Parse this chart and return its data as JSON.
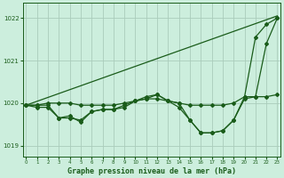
{
  "title": "Graphe pression niveau de la mer (hPa)",
  "background_color": "#cceedd",
  "grid_color": "#aaccbb",
  "line_color": "#1a5c1a",
  "series": [
    {
      "x": [
        0,
        23
      ],
      "y": [
        1019.95,
        1022.05
      ],
      "marker": null,
      "linewidth": 0.9,
      "markersize": 0
    },
    {
      "x": [
        0,
        1,
        2,
        3,
        4,
        5,
        6,
        7,
        8,
        9,
        10,
        11,
        12,
        13,
        14,
        15,
        16,
        17,
        18,
        19,
        20,
        21,
        22,
        23
      ],
      "y": [
        1019.95,
        1019.95,
        1020.0,
        1020.0,
        1020.0,
        1019.95,
        1019.95,
        1019.95,
        1019.95,
        1020.0,
        1020.05,
        1020.1,
        1020.1,
        1020.05,
        1020.0,
        1019.95,
        1019.95,
        1019.95,
        1019.95,
        1020.0,
        1020.15,
        1020.15,
        1020.15,
        1020.2
      ],
      "marker": "D",
      "linewidth": 0.9,
      "markersize": 2
    },
    {
      "x": [
        0,
        1,
        2,
        3,
        4,
        5,
        6,
        7,
        8,
        9,
        10,
        11,
        12,
        13,
        14,
        15,
        16,
        17,
        18,
        19,
        20,
        21,
        22,
        23
      ],
      "y": [
        1019.95,
        1019.9,
        1019.9,
        1019.65,
        1019.65,
        1019.6,
        1019.8,
        1019.85,
        1019.85,
        1019.95,
        1020.05,
        1020.15,
        1020.2,
        1020.05,
        1020.0,
        1019.6,
        1019.3,
        1019.3,
        1019.35,
        1019.6,
        1020.15,
        1021.55,
        1021.85,
        1022.0
      ],
      "marker": "D",
      "linewidth": 0.9,
      "markersize": 2
    },
    {
      "x": [
        0,
        1,
        2,
        3,
        4,
        5,
        6,
        7,
        8,
        9,
        10,
        11,
        12,
        13,
        14,
        15,
        16,
        17,
        18,
        19,
        20,
        21,
        22,
        23
      ],
      "y": [
        1019.95,
        1019.95,
        1019.95,
        1019.65,
        1019.7,
        1019.55,
        1019.8,
        1019.85,
        1019.85,
        1019.9,
        1020.05,
        1020.1,
        1020.2,
        1020.05,
        1019.9,
        1019.6,
        1019.3,
        1019.3,
        1019.35,
        1019.6,
        1020.1,
        1020.15,
        1021.4,
        1022.0
      ],
      "marker": "D",
      "linewidth": 0.9,
      "markersize": 2
    }
  ],
  "yticks": [
    1019,
    1020,
    1021,
    1022
  ],
  "xtick_labels": [
    "0",
    "1",
    "2",
    "3",
    "4",
    "5",
    "6",
    "7",
    "8",
    "9",
    "10",
    "11",
    "12",
    "13",
    "14",
    "15",
    "16",
    "17",
    "18",
    "19",
    "20",
    "21",
    "22",
    "23"
  ],
  "xticks": [
    0,
    1,
    2,
    3,
    4,
    5,
    6,
    7,
    8,
    9,
    10,
    11,
    12,
    13,
    14,
    15,
    16,
    17,
    18,
    19,
    20,
    21,
    22,
    23
  ],
  "ylim": [
    1018.75,
    1022.35
  ],
  "xlim": [
    -0.3,
    23.3
  ]
}
